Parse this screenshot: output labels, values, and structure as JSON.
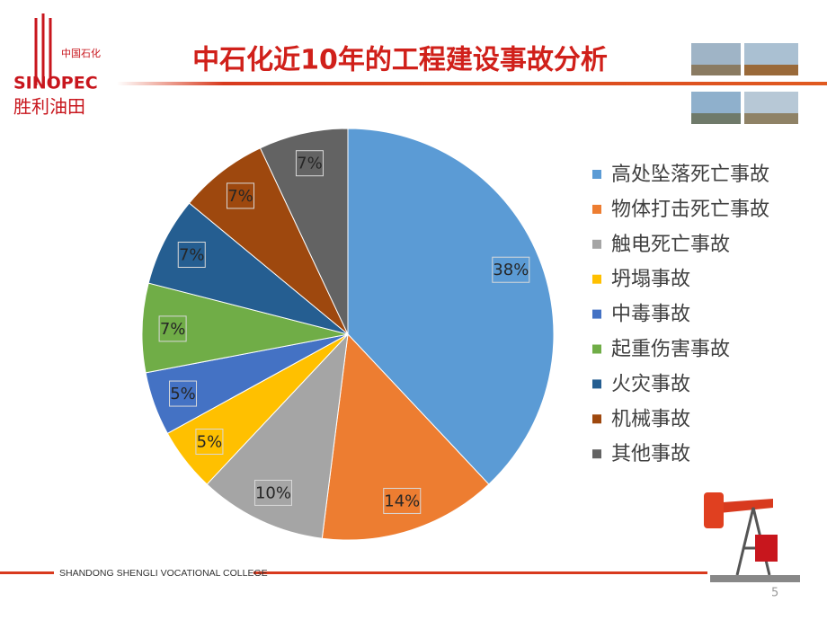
{
  "slide": {
    "logo_top": "中国石化",
    "logo_brand": "SINOPEC",
    "logo_bottom": "胜利油田",
    "footer": "SHANDONG SHENGLI VOCATIONAL COLLEGE",
    "page_number": "5"
  },
  "chart_data": {
    "type": "pie",
    "title": "中石化近10年的工程建设事故分析",
    "categories": [
      "高处坠落死亡事故",
      "物体打击死亡事故",
      "触电死亡事故",
      "坍塌事故",
      "中毒事故",
      "起重伤害事故",
      "火灾事故",
      "机械事故",
      "其他事故"
    ],
    "values": [
      38,
      14,
      10,
      5,
      5,
      7,
      7,
      7,
      7
    ],
    "value_labels": [
      "38%",
      "14%",
      "10%",
      "5%",
      "5%",
      "7%",
      "7%",
      "7%",
      "7%"
    ],
    "colors": [
      "#5B9BD5",
      "#ED7D31",
      "#A5A5A5",
      "#FFC000",
      "#4472C4",
      "#70AD47",
      "#255E91",
      "#9E480E",
      "#636363"
    ],
    "legend": "right"
  }
}
